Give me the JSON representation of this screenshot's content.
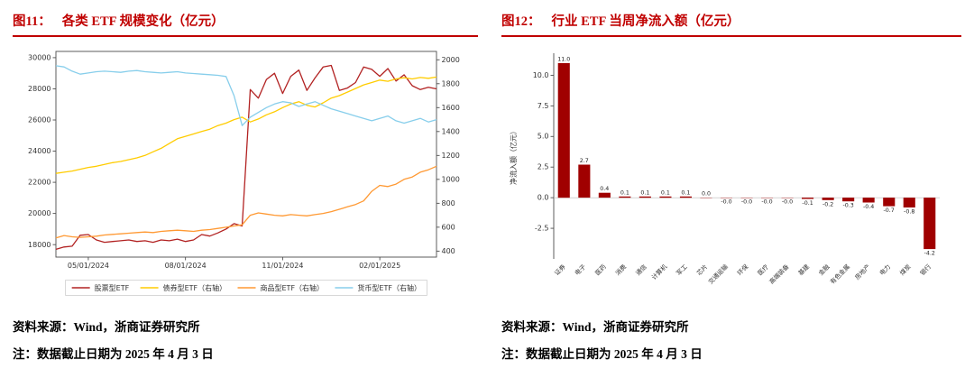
{
  "figure11": {
    "label": "图11：",
    "title": "各类 ETF 规模变化（亿元）",
    "source": "资料来源：Wind，浙商证券研究所",
    "note": "注：数据截止日期为 2025 年 4 月 3 日"
  },
  "figure12": {
    "label": "图12：",
    "title": "行业 ETF 当周净流入额（亿元）",
    "source": "资料来源：Wind，浙商证券研究所",
    "note": "注：数据截止日期为 2025 年 4 月 3 日"
  },
  "colors": {
    "accent_red": "#C00000",
    "bar_red": "#A00000"
  },
  "chart_data": [
    {
      "id": "fig11",
      "type": "line",
      "title": "各类 ETF 规模变化（亿元）",
      "x_ticks": [
        {
          "label": "05/01/2024",
          "index": 4
        },
        {
          "label": "08/01/2024",
          "index": 16
        },
        {
          "label": "11/01/2024",
          "index": 28
        },
        {
          "label": "02/01/2025",
          "index": 40
        }
      ],
      "left_axis": {
        "ticks": [
          18000,
          20000,
          22000,
          24000,
          26000,
          28000,
          30000
        ],
        "range": [
          17200,
          30400
        ]
      },
      "right_axis": {
        "ticks": [
          400,
          600,
          800,
          1000,
          1200,
          1400,
          1600,
          1800,
          2000
        ],
        "range": [
          350,
          2070
        ]
      },
      "legend_position": "bottom",
      "series": [
        {
          "name": "股票型ETF",
          "axis": "left",
          "color": "#B22222",
          "values": [
            17700,
            17850,
            17900,
            18600,
            18650,
            18300,
            18150,
            18200,
            18250,
            18300,
            18200,
            18250,
            18150,
            18300,
            18250,
            18350,
            18200,
            18300,
            18650,
            18550,
            18750,
            19000,
            19350,
            19200,
            27950,
            27400,
            28600,
            29000,
            27700,
            28800,
            29200,
            27900,
            28700,
            29400,
            29500,
            27900,
            28050,
            28400,
            29400,
            29250,
            28800,
            29300,
            28500,
            28900,
            28200,
            27950,
            28100,
            28000
          ]
        },
        {
          "name": "债券型ETF（右轴）",
          "axis": "right",
          "color": "#FFCC00",
          "values": [
            1050,
            1060,
            1070,
            1085,
            1100,
            1110,
            1125,
            1140,
            1150,
            1165,
            1180,
            1200,
            1230,
            1260,
            1300,
            1340,
            1360,
            1380,
            1400,
            1420,
            1450,
            1470,
            1500,
            1520,
            1480,
            1505,
            1540,
            1565,
            1600,
            1630,
            1650,
            1620,
            1605,
            1640,
            1680,
            1700,
            1730,
            1760,
            1790,
            1810,
            1830,
            1820,
            1840,
            1850,
            1840,
            1852,
            1845,
            1856
          ]
        },
        {
          "name": "商品型ETF（右轴）",
          "axis": "right",
          "color": "#FF9933",
          "values": [
            510,
            530,
            520,
            515,
            520,
            525,
            535,
            540,
            545,
            550,
            555,
            560,
            555,
            565,
            570,
            575,
            570,
            565,
            575,
            580,
            590,
            600,
            610,
            620,
            700,
            720,
            710,
            700,
            695,
            705,
            700,
            695,
            705,
            715,
            730,
            750,
            770,
            790,
            820,
            900,
            950,
            940,
            960,
            1000,
            1020,
            1060,
            1080,
            1110
          ]
        },
        {
          "name": "货币型ETF（右轴）",
          "axis": "right",
          "color": "#87CEEB",
          "values": [
            1950,
            1940,
            1905,
            1880,
            1890,
            1900,
            1905,
            1900,
            1895,
            1905,
            1910,
            1900,
            1895,
            1890,
            1895,
            1900,
            1890,
            1885,
            1880,
            1875,
            1870,
            1860,
            1700,
            1450,
            1520,
            1560,
            1600,
            1630,
            1650,
            1640,
            1610,
            1630,
            1650,
            1620,
            1590,
            1570,
            1550,
            1530,
            1510,
            1490,
            1510,
            1530,
            1490,
            1470,
            1490,
            1510,
            1480,
            1500
          ]
        }
      ]
    },
    {
      "id": "fig12",
      "type": "bar",
      "title": "行业 ETF 当周净流入额（亿元）",
      "ylabel": "净流入额（亿元）",
      "yticks": [
        -2.5,
        0.0,
        2.5,
        5.0,
        7.5,
        10.0
      ],
      "ylim": [
        -5.0,
        11.8
      ],
      "bar_color": "#A00000",
      "categories": [
        "证券",
        "电子",
        "医药",
        "消费",
        "通信",
        "计算机",
        "军工",
        "芯片",
        "交通运输",
        "环保",
        "医疗",
        "高端装备",
        "基建",
        "金融",
        "有色金属",
        "房地产",
        "电力",
        "煤炭",
        "银行"
      ],
      "values": [
        11.0,
        2.7,
        0.4,
        0.1,
        0.1,
        0.1,
        0.1,
        0.0,
        -0.0,
        -0.0,
        -0.0,
        -0.0,
        -0.1,
        -0.2,
        -0.3,
        -0.4,
        -0.7,
        -0.8,
        -4.2
      ],
      "labels": [
        "11.0",
        "2.7",
        "0.4",
        "0.1",
        "0.1",
        "0.1",
        "0.1",
        "0.0",
        "-0.0",
        "-0.0",
        "-0.0",
        "-0.0",
        "-0.1",
        "-0.2",
        "-0.3",
        "-0.4",
        "-0.7",
        "-0.8",
        "-4.2"
      ]
    }
  ]
}
